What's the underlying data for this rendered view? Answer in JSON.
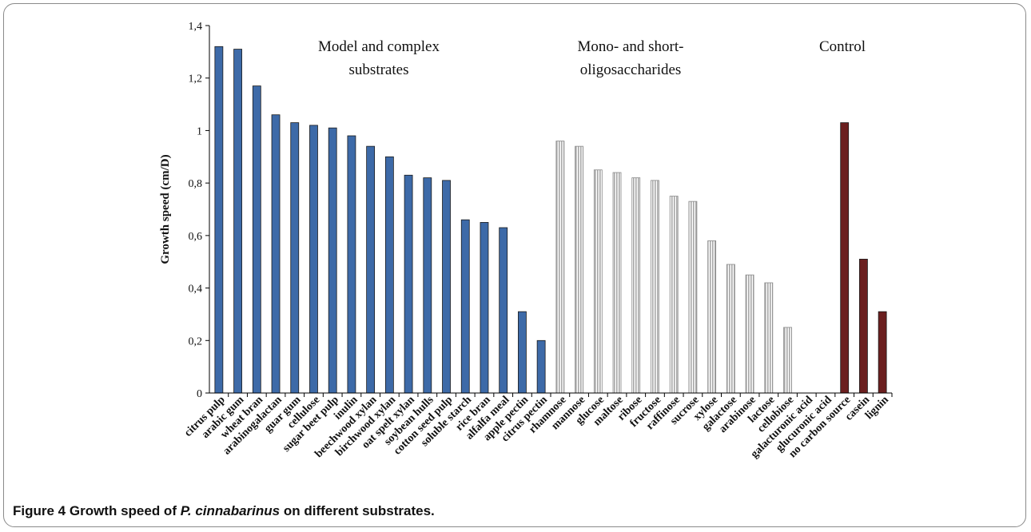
{
  "caption": {
    "label": "Figure 4",
    "text_before": "Growth speed of",
    "species": "P. cinnabarinus",
    "text_after": "on different substrates."
  },
  "chart_data": {
    "type": "bar",
    "title": "",
    "xlabel": "",
    "ylabel": "Growth speed (cm/D)",
    "ylim": [
      0,
      1.4
    ],
    "yticks": [
      "0",
      "0,2",
      "0,4",
      "0,6",
      "0,8",
      "1",
      "1,2",
      "1,4"
    ],
    "grid": false,
    "groups": [
      {
        "name_lines": [
          "Model and complex",
          "substrates"
        ],
        "color": "#3d6aa8",
        "pattern": "solid",
        "categories": [
          "citrus pulp",
          "arabic gum",
          "wheat bran",
          "arabinogalactan",
          "guar gum",
          "cellulose",
          "sugar beet pulp",
          "inulin",
          "beechwood xylan",
          "birchwood xylan",
          "oat spelt xylan",
          "soybean hulls",
          "cotton seed pulp",
          "soluble starch",
          "rice bran",
          "alfalfa meal",
          "apple pectin",
          "citrus pectin"
        ],
        "values": [
          1.32,
          1.31,
          1.17,
          1.06,
          1.03,
          1.02,
          1.01,
          0.98,
          0.94,
          0.9,
          0.83,
          0.82,
          0.81,
          0.66,
          0.65,
          0.63,
          0.31,
          0.2
        ]
      },
      {
        "name_lines": [
          "Mono- and short-",
          "oligosaccharides"
        ],
        "color": "#bdbdbd",
        "pattern": "striped",
        "categories": [
          "rhamnose",
          "mannose",
          "glucose",
          "maltose",
          "ribose",
          "fructose",
          "raffinose",
          "sucrose",
          "xylose",
          "galactose",
          "arabinose",
          "lactose",
          "cellobiose",
          "galacturonic acid",
          "glucuronic acid"
        ],
        "values": [
          0.96,
          0.94,
          0.85,
          0.84,
          0.82,
          0.81,
          0.75,
          0.73,
          0.58,
          0.49,
          0.45,
          0.42,
          0.25,
          0,
          0
        ]
      },
      {
        "name_lines": [
          "Control"
        ],
        "color": "#6b1f1f",
        "pattern": "solid",
        "categories": [
          "no carbon source",
          "casein",
          "lignin"
        ],
        "values": [
          1.03,
          0.51,
          0.31
        ]
      }
    ]
  }
}
